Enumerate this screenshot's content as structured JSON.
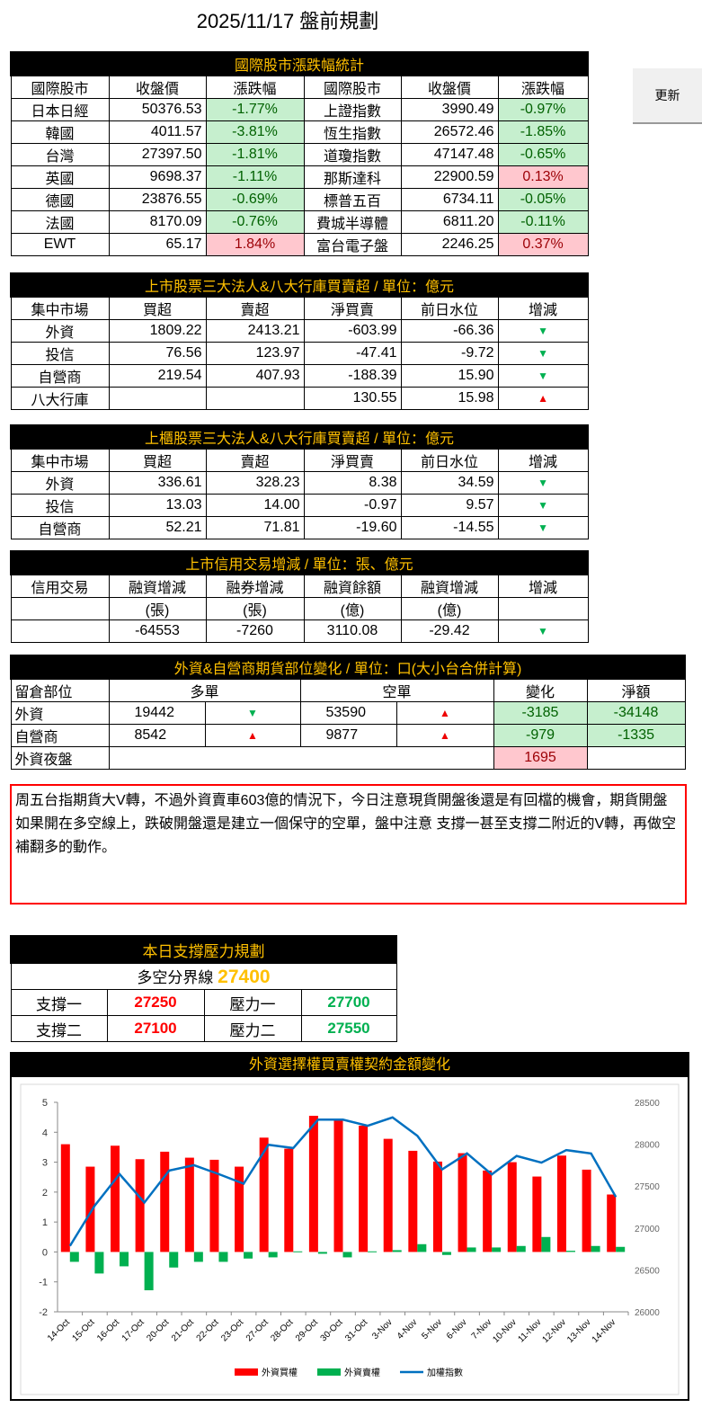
{
  "title": "2025/11/17 盤前規劃",
  "refresh_label": "更新",
  "intl": {
    "title": "國際股市漲跌幅統計",
    "headers": [
      "國際股市",
      "收盤價",
      "漲跌幅",
      "國際股市",
      "收盤價",
      "漲跌幅"
    ],
    "rows": [
      [
        "日本日經",
        "50376.53",
        "-1.77%",
        "上證指數",
        "3990.49",
        "-0.97%"
      ],
      [
        "韓國",
        "4011.57",
        "-3.81%",
        "恆生指數",
        "26572.46",
        "-1.85%"
      ],
      [
        "台灣",
        "27397.50",
        "-1.81%",
        "道瓊指數",
        "47147.48",
        "-0.65%"
      ],
      [
        "英國",
        "9698.37",
        "-1.11%",
        "那斯達科",
        "22900.59",
        "0.13%"
      ],
      [
        "德國",
        "23876.55",
        "-0.69%",
        "標普五百",
        "6734.11",
        "-0.05%"
      ],
      [
        "法國",
        "8170.09",
        "-0.76%",
        "費城半導體",
        "6811.20",
        "-0.11%"
      ],
      [
        "EWT",
        "65.17",
        "1.84%",
        "富台電子盤",
        "2246.25",
        "0.37%"
      ]
    ]
  },
  "listed": {
    "title": "上市股票三大法人&八大行庫買賣超 / 單位：億元",
    "headers": [
      "集中市場",
      "買超",
      "賣超",
      "淨買賣",
      "前日水位",
      "增減"
    ],
    "rows": [
      [
        "外資",
        "1809.22",
        "2413.21",
        "-603.99",
        "-66.36",
        "▼"
      ],
      [
        "投信",
        "76.56",
        "123.97",
        "-47.41",
        "-9.72",
        "▼"
      ],
      [
        "自營商",
        "219.54",
        "407.93",
        "-188.39",
        "15.90",
        "▼"
      ],
      [
        "八大行庫",
        "",
        "",
        "130.55",
        "15.98",
        "▲"
      ]
    ]
  },
  "otc": {
    "title": "上櫃股票三大法人&八大行庫買賣超 / 單位：億元",
    "headers": [
      "集中市場",
      "買超",
      "賣超",
      "淨買賣",
      "前日水位",
      "增減"
    ],
    "rows": [
      [
        "外資",
        "336.61",
        "328.23",
        "8.38",
        "34.59",
        "▼"
      ],
      [
        "投信",
        "13.03",
        "14.00",
        "-0.97",
        "9.57",
        "▼"
      ],
      [
        "自營商",
        "52.21",
        "71.81",
        "-19.60",
        "-14.55",
        "▼"
      ]
    ]
  },
  "margin": {
    "title": "上市信用交易增減 / 單位：張、億元",
    "headers": [
      "信用交易",
      "融資增減",
      "融券增減",
      "融資餘額",
      "融資增減",
      "增減"
    ],
    "units": [
      "",
      "(張)",
      "(張)",
      "(億)",
      "(億)",
      ""
    ],
    "row": [
      "",
      "-64553",
      "-7260",
      "3110.08",
      "-29.42",
      "▼"
    ]
  },
  "futures": {
    "title": "外資&自營商期貨部位變化 / 單位：口(大小台合併計算)",
    "headers": [
      "留倉部位",
      "多單",
      "空單",
      "變化",
      "淨額"
    ],
    "rows": [
      [
        "外資",
        "19442",
        "▼",
        "53590",
        "▲",
        "-3185",
        "-34148"
      ],
      [
        "自營商",
        "8542",
        "▲",
        "9877",
        "▲",
        "-979",
        "-1335"
      ]
    ],
    "night": [
      "外資夜盤",
      "1695"
    ]
  },
  "note": "周五台指期貨大V轉，不過外資賣車603億的情況下，今日注意現貨開盤後還是有回檔的機會，期貨開盤如果開在多空線上，跌破開盤還是建立一個保守的空單，盤中注意 支撐一甚至支撐二附近的V轉，再做空補翻多的動作。",
  "sr": {
    "title": "本日支撐壓力規劃",
    "pivot_label": "多空分界線",
    "pivot": "27400",
    "rows": [
      [
        "支撐一",
        "27250",
        "壓力一",
        "27700"
      ],
      [
        "支撐二",
        "27100",
        "壓力二",
        "27550"
      ]
    ]
  },
  "colors": {
    "up": "#ff0000",
    "down": "#00b050",
    "header_text": "#ffc000",
    "line": "#0070c0"
  },
  "chart_data": {
    "type": "bar+line",
    "title": "外資選擇權買賣權契約金額變化",
    "categories": [
      "14-Oct",
      "15-Oct",
      "16-Oct",
      "17-Oct",
      "20-Oct",
      "21-Oct",
      "22-Oct",
      "23-Oct",
      "27-Oct",
      "28-Oct",
      "29-Oct",
      "30-Oct",
      "31-Oct",
      "3-Nov",
      "4-Nov",
      "5-Nov",
      "6-Nov",
      "7-Nov",
      "10-Nov",
      "11-Nov",
      "12-Nov",
      "13-Nov",
      "14-Nov"
    ],
    "series": [
      {
        "name": "外資買權",
        "type": "bar",
        "axis": "left",
        "color": "#ff0000",
        "values": [
          3.6,
          2.85,
          3.55,
          3.1,
          3.35,
          3.15,
          3.08,
          2.85,
          3.82,
          3.45,
          4.55,
          4.42,
          4.22,
          3.78,
          3.38,
          3.02,
          3.3,
          2.72,
          3.0,
          2.52,
          3.22,
          2.75,
          1.92
        ]
      },
      {
        "name": "外資賣權",
        "type": "bar",
        "axis": "left",
        "color": "#00b050",
        "values": [
          -0.33,
          -0.72,
          -0.48,
          -1.28,
          -0.52,
          -0.33,
          -0.33,
          -0.22,
          -0.18,
          0.02,
          -0.06,
          -0.18,
          0.02,
          0.06,
          0.26,
          -0.1,
          0.15,
          0.15,
          0.2,
          0.5,
          0.04,
          0.2,
          0.17
        ]
      },
      {
        "name": "加權指數",
        "type": "line",
        "axis": "right",
        "color": "#0070c0",
        "values": [
          26786,
          27268,
          27643,
          27304,
          27686,
          27750,
          27643,
          27529,
          27993,
          27954,
          28293,
          28293,
          28220,
          28320,
          28100,
          27700,
          27890,
          27640,
          27860,
          27780,
          27930,
          27890,
          27370
        ]
      }
    ],
    "ylim_left": [
      -2,
      5
    ],
    "yticks_left": [
      "5",
      "4",
      "3",
      "2",
      "1",
      "0",
      "-1",
      "-2"
    ],
    "ylim_right": [
      26000,
      28500
    ],
    "yticks_right": [
      "28500",
      "28000",
      "27500",
      "27000",
      "26500",
      "26000"
    ],
    "legend": "bottom",
    "grid": false
  }
}
